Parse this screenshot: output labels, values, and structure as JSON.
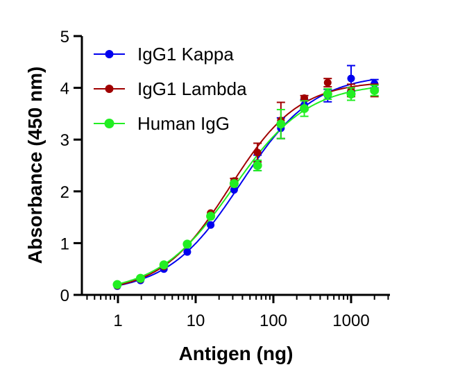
{
  "chart_data": {
    "type": "scatter",
    "xlabel": "Antigen (ng)",
    "ylabel": "Absorbance (450 nm)",
    "xscale": "log",
    "xlim": [
      0.5,
      3000
    ],
    "ylim": [
      0,
      5
    ],
    "x_ticks": [
      1,
      10,
      100,
      1000
    ],
    "x_tick_labels": [
      "1",
      "10",
      "100",
      "1000"
    ],
    "y_ticks": [
      0,
      1,
      2,
      3,
      4,
      5
    ],
    "y_tick_labels": [
      "0",
      "1",
      "2",
      "3",
      "4",
      "5"
    ],
    "grid": false,
    "legend_position": "top-left",
    "x": [
      0.98,
      1.95,
      3.9,
      7.8,
      15.6,
      31.25,
      62.5,
      125,
      250,
      500,
      1000,
      2000
    ],
    "series": [
      {
        "name": "IgG1 Kappa",
        "color": "#0000ee",
        "values": [
          0.17,
          0.28,
          0.5,
          0.83,
          1.35,
          2.03,
          2.55,
          3.22,
          3.67,
          3.85,
          4.18,
          4.08
        ],
        "errors": [
          0.02,
          0.02,
          0.02,
          0.03,
          0.03,
          0.04,
          0.15,
          0.2,
          0.1,
          0.12,
          0.25,
          0.08
        ]
      },
      {
        "name": "IgG1 Lambda",
        "color": "#a00000",
        "values": [
          0.18,
          0.3,
          0.55,
          0.98,
          1.58,
          2.2,
          2.75,
          3.37,
          3.8,
          4.1,
          3.95,
          3.95
        ],
        "errors": [
          0.02,
          0.02,
          0.02,
          0.03,
          0.03,
          0.05,
          0.18,
          0.35,
          0.05,
          0.08,
          0.12,
          0.12
        ]
      },
      {
        "name": "Human IgG",
        "color": "#22ee22",
        "values": [
          0.2,
          0.32,
          0.58,
          0.98,
          1.52,
          2.15,
          2.5,
          3.3,
          3.6,
          3.88,
          3.88,
          3.95
        ],
        "errors": [
          0.02,
          0.02,
          0.02,
          0.03,
          0.03,
          0.04,
          0.1,
          0.28,
          0.15,
          0.1,
          0.12,
          0.1
        ]
      }
    ]
  }
}
